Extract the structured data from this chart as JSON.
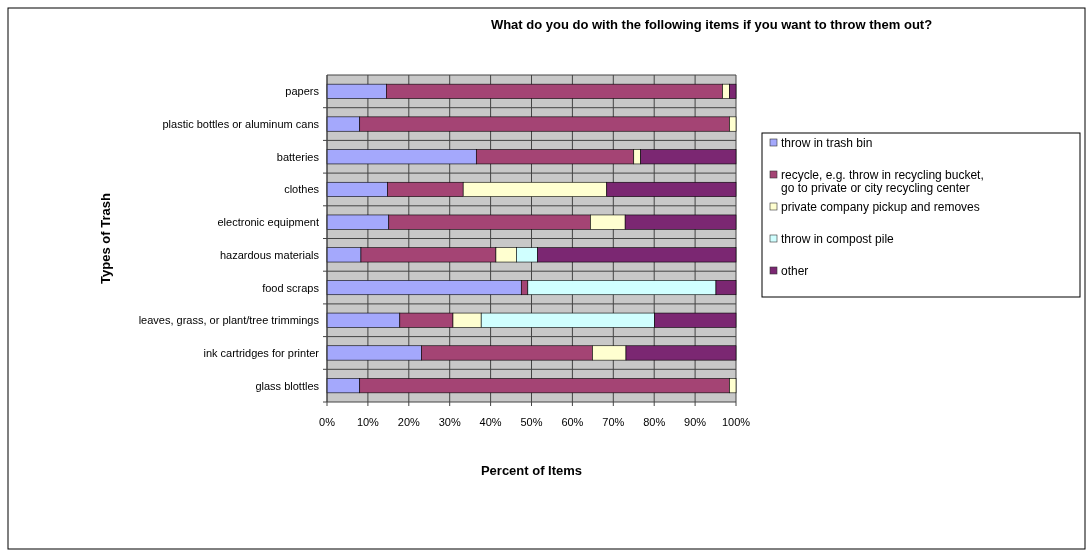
{
  "chart_data": {
    "type": "bar",
    "orientation": "horizontal",
    "stacked": true,
    "title": "What do you do with the following items if you want to throw them out?",
    "xlabel": "Percent of Items",
    "ylabel": "Types of Trash",
    "categories": [
      "papers",
      "plastic bottles or aluminum cans",
      "batteries",
      "clothes",
      "electronic equipment",
      "hazardous materials",
      "food scraps",
      "leaves, grass, or plant/tree trimmings",
      "ink cartridges for printer",
      "glass blottles"
    ],
    "series": [
      {
        "name": "throw in trash bin",
        "color": "#a4a8fc",
        "values": [
          14.5,
          8.0,
          36.5,
          14.8,
          15.1,
          8.3,
          47.5,
          17.8,
          23.1,
          8.0
        ]
      },
      {
        "name": "recycle, e.g. throw in recycling bucket, go to private or city recycling center",
        "color": "#a44474",
        "values": [
          82.2,
          90.4,
          38.5,
          18.5,
          49.3,
          33.0,
          1.6,
          13.0,
          41.8,
          90.4
        ]
      },
      {
        "name": "private company pickup and removes",
        "color": "#ffffd0",
        "values": [
          1.7,
          1.6,
          1.7,
          35.1,
          8.5,
          5.0,
          0,
          6.9,
          8.2,
          1.6
        ]
      },
      {
        "name": "throw in compost pile",
        "color": "#d0ffff",
        "values": [
          0,
          0,
          0,
          0,
          0,
          5.2,
          46.0,
          42.4,
          0,
          0
        ]
      },
      {
        "name": "other",
        "color": "#7b2772",
        "values": [
          1.6,
          0,
          23.3,
          31.6,
          27.1,
          48.5,
          4.9,
          19.9,
          26.9,
          0
        ]
      }
    ],
    "xlim": [
      0,
      100
    ],
    "xticks": [
      {
        "value": 0,
        "label": "0%"
      },
      {
        "value": 10,
        "label": "10%"
      },
      {
        "value": 20,
        "label": "20%"
      },
      {
        "value": 30,
        "label": "30%"
      },
      {
        "value": 40,
        "label": "40%"
      },
      {
        "value": 50,
        "label": "50%"
      },
      {
        "value": 60,
        "label": "60%"
      },
      {
        "value": 70,
        "label": "70%"
      },
      {
        "value": 80,
        "label": "80%"
      },
      {
        "value": 90,
        "label": "90%"
      },
      {
        "value": 100,
        "label": "100%"
      }
    ],
    "grid": true,
    "legend": "right"
  }
}
